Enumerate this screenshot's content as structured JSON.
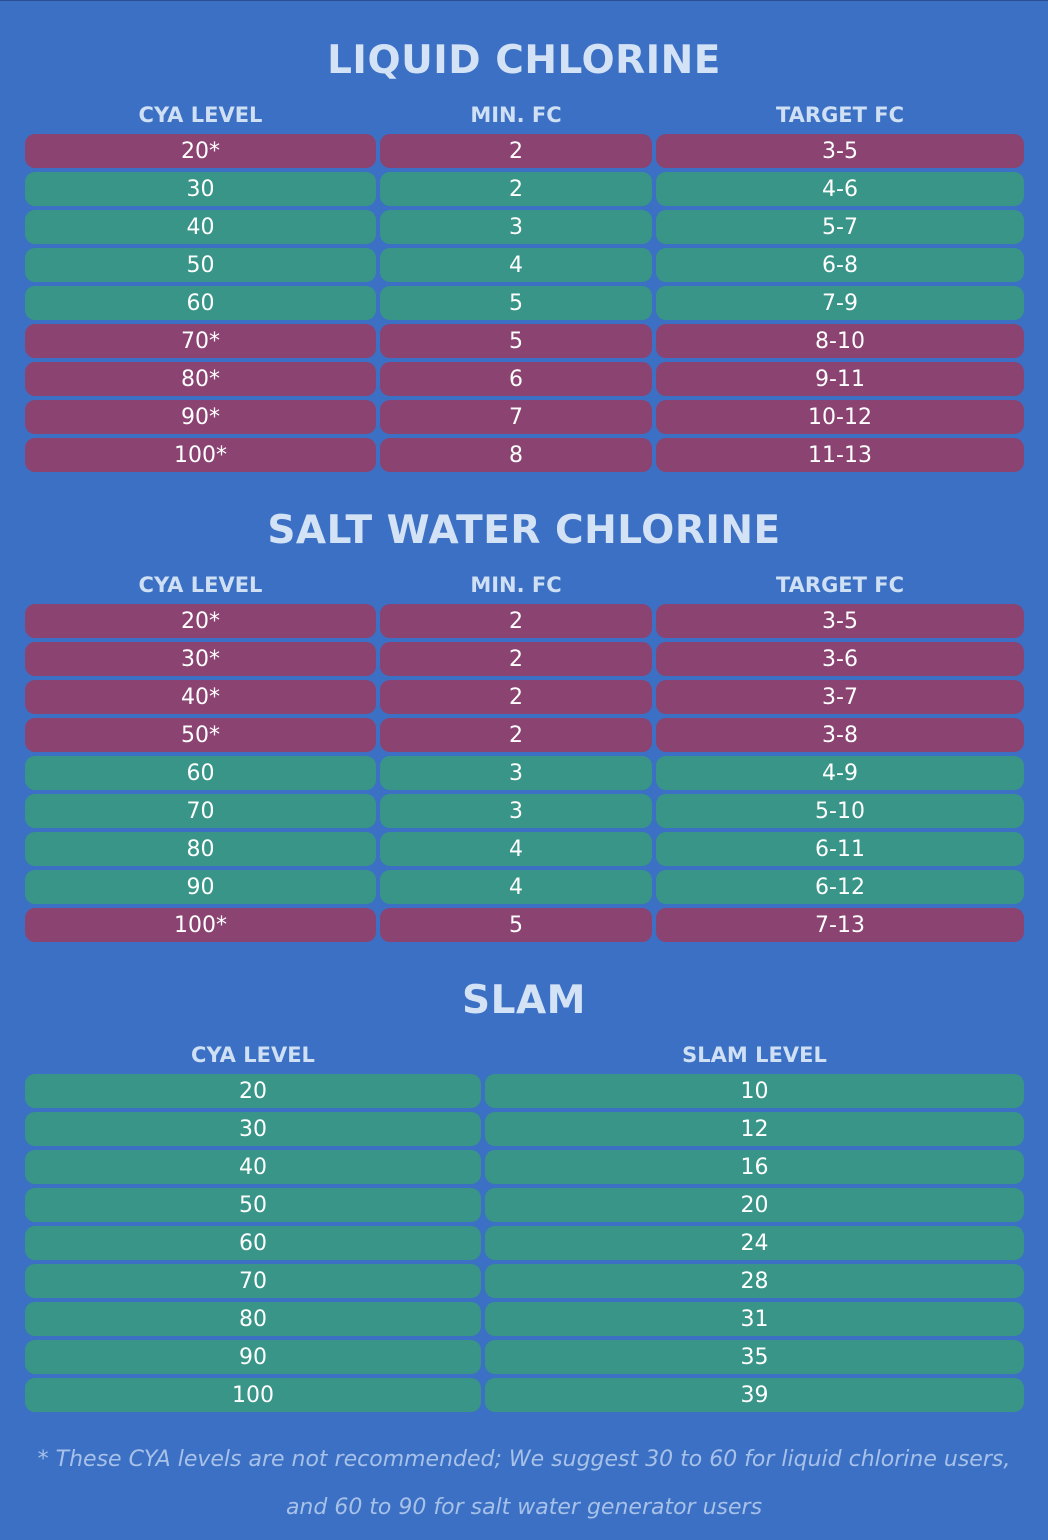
{
  "liquid": {
    "title": "LIQUID CHLORINE",
    "headers": [
      "CYA LEVEL",
      "MIN. FC",
      "TARGET FC"
    ],
    "rows": [
      {
        "cya": "20*",
        "min": "2",
        "target": "3-5",
        "style": "pink"
      },
      {
        "cya": "30",
        "min": "2",
        "target": "4-6",
        "style": "green"
      },
      {
        "cya": "40",
        "min": "3",
        "target": "5-7",
        "style": "green"
      },
      {
        "cya": "50",
        "min": "4",
        "target": "6-8",
        "style": "green"
      },
      {
        "cya": "60",
        "min": "5",
        "target": "7-9",
        "style": "green"
      },
      {
        "cya": "70*",
        "min": "5",
        "target": "8-10",
        "style": "pink"
      },
      {
        "cya": "80*",
        "min": "6",
        "target": "9-11",
        "style": "pink"
      },
      {
        "cya": "90*",
        "min": "7",
        "target": "10-12",
        "style": "pink"
      },
      {
        "cya": "100*",
        "min": "8",
        "target": "11-13",
        "style": "pink"
      }
    ]
  },
  "salt": {
    "title": "SALT WATER CHLORINE",
    "headers": [
      "CYA LEVEL",
      "MIN. FC",
      "TARGET FC"
    ],
    "rows": [
      {
        "cya": "20*",
        "min": "2",
        "target": "3-5",
        "style": "pink"
      },
      {
        "cya": "30*",
        "min": "2",
        "target": "3-6",
        "style": "pink"
      },
      {
        "cya": "40*",
        "min": "2",
        "target": "3-7",
        "style": "pink"
      },
      {
        "cya": "50*",
        "min": "2",
        "target": "3-8",
        "style": "pink"
      },
      {
        "cya": "60",
        "min": "3",
        "target": "4-9",
        "style": "green"
      },
      {
        "cya": "70",
        "min": "3",
        "target": "5-10",
        "style": "green"
      },
      {
        "cya": "80",
        "min": "4",
        "target": "6-11",
        "style": "green"
      },
      {
        "cya": "90",
        "min": "4",
        "target": "6-12",
        "style": "green"
      },
      {
        "cya": "100*",
        "min": "5",
        "target": "7-13",
        "style": "pink"
      }
    ]
  },
  "slam": {
    "title": "SLAM",
    "headers": [
      "CYA LEVEL",
      "SLAM LEVEL"
    ],
    "rows": [
      {
        "cya": "20",
        "slam": "10",
        "style": "green"
      },
      {
        "cya": "30",
        "slam": "12",
        "style": "green"
      },
      {
        "cya": "40",
        "slam": "16",
        "style": "green"
      },
      {
        "cya": "50",
        "slam": "20",
        "style": "green"
      },
      {
        "cya": "60",
        "slam": "24",
        "style": "green"
      },
      {
        "cya": "70",
        "slam": "28",
        "style": "green"
      },
      {
        "cya": "80",
        "slam": "31",
        "style": "green"
      },
      {
        "cya": "90",
        "slam": "35",
        "style": "green"
      },
      {
        "cya": "100",
        "slam": "39",
        "style": "green"
      }
    ]
  },
  "footnote": "* These CYA levels are not recommended; We suggest 30 to 60 for liquid chlorine users, and 60 to 90 for salt water generator users",
  "colors": {
    "background": "#3b70c4",
    "not_recommended_row": "#8b4372",
    "recommended_row": "#389587",
    "title_text": "#d4e2f6",
    "footnote_text": "#a7c1e8"
  }
}
